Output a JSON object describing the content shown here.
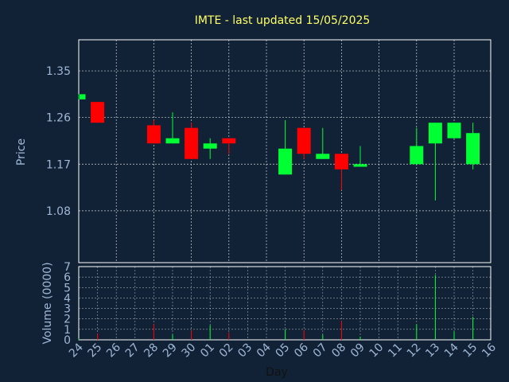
{
  "title": "IMTE - last updated 15/05/2025",
  "colors": {
    "background": "#112236",
    "up": "#00ff33",
    "down": "#ff0000",
    "grid": "#ffffff",
    "text": "#9fb8d6",
    "title": "#ffff66"
  },
  "chart_data": [
    {
      "type": "candlestick",
      "ylabel": "Price",
      "ylim": [
        0.98,
        1.41
      ],
      "yticks": [
        "1.35",
        "1.26",
        "1.17",
        "1.08"
      ],
      "grid": true,
      "candles": [
        {
          "day": "24",
          "open": 1.295,
          "close": 1.305,
          "high": 1.305,
          "low": 1.295
        },
        {
          "day": "25",
          "open": 1.29,
          "close": 1.25,
          "high": 1.29,
          "low": 1.25
        },
        {
          "day": "28",
          "open": 1.245,
          "close": 1.21,
          "high": 1.255,
          "low": 1.21
        },
        {
          "day": "29",
          "open": 1.21,
          "close": 1.22,
          "high": 1.27,
          "low": 1.21
        },
        {
          "day": "30",
          "open": 1.24,
          "close": 1.18,
          "high": 1.25,
          "low": 1.18
        },
        {
          "day": "01",
          "open": 1.2,
          "close": 1.21,
          "high": 1.22,
          "low": 1.18
        },
        {
          "day": "02",
          "open": 1.22,
          "close": 1.21,
          "high": 1.22,
          "low": 1.19
        },
        {
          "day": "05",
          "open": 1.15,
          "close": 1.2,
          "high": 1.255,
          "low": 1.15
        },
        {
          "day": "06",
          "open": 1.24,
          "close": 1.19,
          "high": 1.24,
          "low": 1.18
        },
        {
          "day": "07",
          "open": 1.18,
          "close": 1.19,
          "high": 1.24,
          "low": 1.18
        },
        {
          "day": "08",
          "open": 1.19,
          "close": 1.16,
          "high": 1.19,
          "low": 1.12
        },
        {
          "day": "09",
          "open": 1.165,
          "close": 1.17,
          "high": 1.205,
          "low": 1.165
        },
        {
          "day": "12",
          "open": 1.17,
          "close": 1.205,
          "high": 1.24,
          "low": 1.17
        },
        {
          "day": "13",
          "open": 1.21,
          "close": 1.25,
          "high": 1.25,
          "low": 1.1
        },
        {
          "day": "14",
          "open": 1.22,
          "close": 1.25,
          "high": 1.25,
          "low": 1.22
        },
        {
          "day": "15",
          "open": 1.17,
          "close": 1.23,
          "high": 1.25,
          "low": 1.16
        }
      ]
    },
    {
      "type": "bar",
      "ylabel": "Volume (0000)",
      "ylim": [
        0,
        7
      ],
      "yticks": [
        "0",
        "1",
        "2",
        "3",
        "4",
        "5",
        "6",
        "7"
      ],
      "grid": true,
      "volumes": [
        {
          "day": "24",
          "value": 0.1,
          "dir": "up"
        },
        {
          "day": "25",
          "value": 0.6,
          "dir": "down"
        },
        {
          "day": "28",
          "value": 1.5,
          "dir": "down"
        },
        {
          "day": "29",
          "value": 0.5,
          "dir": "up"
        },
        {
          "day": "30",
          "value": 0.9,
          "dir": "down"
        },
        {
          "day": "01",
          "value": 1.4,
          "dir": "up"
        },
        {
          "day": "02",
          "value": 0.7,
          "dir": "down"
        },
        {
          "day": "05",
          "value": 1.0,
          "dir": "up"
        },
        {
          "day": "06",
          "value": 0.9,
          "dir": "down"
        },
        {
          "day": "07",
          "value": 0.5,
          "dir": "up"
        },
        {
          "day": "08",
          "value": 1.8,
          "dir": "down"
        },
        {
          "day": "09",
          "value": 0.3,
          "dir": "up"
        },
        {
          "day": "12",
          "value": 1.5,
          "dir": "up"
        },
        {
          "day": "13",
          "value": 6.2,
          "dir": "up"
        },
        {
          "day": "14",
          "value": 0.8,
          "dir": "up"
        },
        {
          "day": "15",
          "value": 2.2,
          "dir": "up"
        }
      ]
    }
  ],
  "xaxis": {
    "label": "Day",
    "ticks": [
      "24",
      "25",
      "26",
      "27",
      "28",
      "29",
      "30",
      "01",
      "02",
      "03",
      "04",
      "05",
      "06",
      "07",
      "08",
      "09",
      "10",
      "11",
      "12",
      "13",
      "14",
      "15",
      "16"
    ]
  }
}
